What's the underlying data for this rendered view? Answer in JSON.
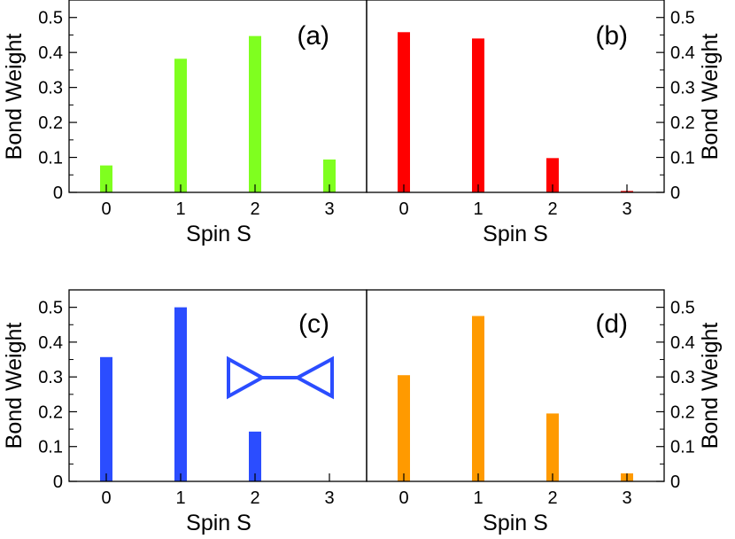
{
  "chart_data": [
    {
      "type": "bar",
      "label": "(a)",
      "xlabel": "Spin S",
      "ylabel": "Bond Weight",
      "x": [
        0,
        1,
        2,
        3
      ],
      "values": [
        0.077,
        0.382,
        0.447,
        0.094
      ],
      "xlim": [
        -0.5,
        3.5
      ],
      "ylim": [
        0,
        0.55
      ],
      "yticks": [
        "0",
        "0.1",
        "0.2",
        "0.3",
        "0.4",
        "0.5"
      ],
      "xticks": [
        "0",
        "1",
        "2",
        "3"
      ],
      "color": "#7fff1f"
    },
    {
      "type": "bar",
      "label": "(b)",
      "xlabel": "Spin S",
      "ylabel": "Bond Weight",
      "x": [
        0,
        1,
        2,
        3
      ],
      "values": [
        0.458,
        0.44,
        0.098,
        0.004
      ],
      "xlim": [
        -0.5,
        3.5
      ],
      "ylim": [
        0,
        0.55
      ],
      "yticks": [
        "0",
        "0.1",
        "0.2",
        "0.3",
        "0.4",
        "0.5"
      ],
      "xticks": [
        "0",
        "1",
        "2",
        "3"
      ],
      "color": "#ff0000"
    },
    {
      "type": "bar",
      "label": "(c)",
      "xlabel": "Spin S",
      "ylabel": "Bond Weight",
      "x": [
        0,
        1,
        2,
        3
      ],
      "values": [
        0.357,
        0.5,
        0.143,
        0
      ],
      "xlim": [
        -0.5,
        3.5
      ],
      "ylim": [
        0,
        0.55
      ],
      "yticks": [
        "0",
        "0.1",
        "0.2",
        "0.3",
        "0.4",
        "0.5"
      ],
      "xticks": [
        "0",
        "1",
        "2",
        "3"
      ],
      "color": "#2b4dff"
    },
    {
      "type": "bar",
      "label": "(d)",
      "xlabel": "Spin S",
      "ylabel": "Bond Weight",
      "x": [
        0,
        1,
        2,
        3
      ],
      "values": [
        0.305,
        0.475,
        0.195,
        0.023
      ],
      "xlim": [
        -0.5,
        3.5
      ],
      "ylim": [
        0,
        0.55
      ],
      "yticks": [
        "0",
        "0.1",
        "0.2",
        "0.3",
        "0.4",
        "0.5"
      ],
      "xticks": [
        "0",
        "1",
        "2",
        "3"
      ],
      "color": "#ff9a00"
    }
  ]
}
